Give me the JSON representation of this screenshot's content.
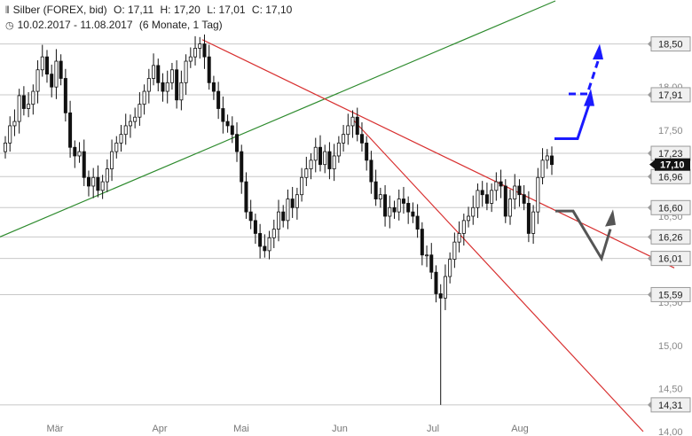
{
  "header": {
    "instrument": "Silber (FOREX, bid)",
    "open": "O: 17,11",
    "high": "H: 17,20",
    "low": "L: 17,01",
    "close": "C: 17,10",
    "range": "10.02.2017 - 11.08.2017",
    "period": "(6 Monate, 1 Tag)"
  },
  "colors": {
    "support_resistance": "#c8c8c8",
    "trend_green": "#2e8b2e",
    "trend_red": "#d83030",
    "arrow_blue": "#1a1aff",
    "arrow_gray": "#555555",
    "candle": "#111111"
  },
  "chart_data": {
    "type": "candlestick",
    "ylim": [
      14.0,
      19.0
    ],
    "y_axis_ticks": [
      "18,00",
      "17,50",
      "17,00",
      "16,50",
      "16,00",
      "15,50",
      "15,00",
      "14,50",
      "14,00"
    ],
    "y_tick_values": [
      18.0,
      17.5,
      17.0,
      16.5,
      16.0,
      15.5,
      15.0,
      14.5,
      14.0
    ],
    "x_axis_labels": [
      "Mär",
      "Apr",
      "Mai",
      "Jun",
      "Jul",
      "Aug"
    ],
    "horizontal_levels": [
      {
        "value": 18.5,
        "label": "18,50"
      },
      {
        "value": 17.91,
        "label": "17,91"
      },
      {
        "value": 17.23,
        "label": "17,23"
      },
      {
        "value": 16.96,
        "label": "16,96"
      },
      {
        "value": 16.6,
        "label": "16,60"
      },
      {
        "value": 16.26,
        "label": "16,26"
      },
      {
        "value": 16.01,
        "label": "16,01"
      },
      {
        "value": 15.59,
        "label": "15,59"
      },
      {
        "value": 14.31,
        "label": "14,31"
      }
    ],
    "last_price": {
      "value": 17.1,
      "label": "17,10"
    },
    "closes": [
      17.35,
      17.55,
      17.6,
      17.9,
      17.75,
      17.8,
      17.95,
      18.2,
      18.35,
      18.15,
      18.0,
      18.3,
      18.1,
      17.7,
      17.3,
      17.2,
      17.25,
      16.95,
      16.85,
      16.95,
      16.8,
      16.9,
      17.05,
      17.25,
      17.35,
      17.45,
      17.55,
      17.6,
      17.65,
      17.8,
      17.95,
      18.1,
      18.25,
      18.05,
      17.95,
      18.05,
      18.2,
      17.85,
      18.05,
      18.3,
      18.35,
      18.45,
      18.5,
      18.35,
      18.05,
      17.95,
      17.75,
      17.6,
      17.55,
      17.45,
      17.25,
      16.9,
      16.55,
      16.45,
      16.3,
      16.15,
      16.1,
      16.25,
      16.35,
      16.55,
      16.45,
      16.7,
      16.6,
      16.75,
      16.95,
      17.05,
      17.15,
      17.3,
      17.1,
      17.25,
      17.05,
      17.2,
      17.35,
      17.45,
      17.55,
      17.65,
      17.45,
      17.35,
      17.15,
      16.9,
      16.7,
      16.75,
      16.5,
      16.6,
      16.55,
      16.7,
      16.65,
      16.55,
      16.5,
      16.35,
      16.05,
      16.05,
      15.85,
      15.6,
      15.55,
      15.8,
      16.0,
      16.2,
      16.3,
      16.45,
      16.5,
      16.6,
      16.8,
      16.75,
      16.65,
      16.8,
      16.9,
      16.85,
      16.5,
      16.7,
      16.85,
      16.75,
      16.65,
      16.3,
      16.55,
      16.95,
      17.15,
      17.2,
      17.1
    ]
  }
}
